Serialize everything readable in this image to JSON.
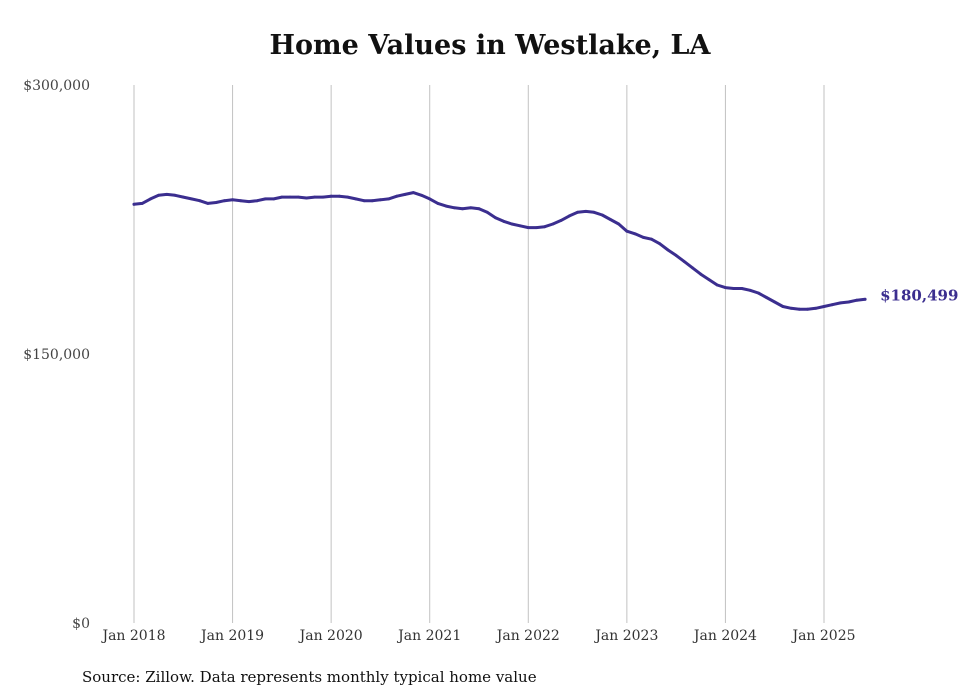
{
  "chart_data": {
    "type": "line",
    "title": "Home Values in Westlake, LA",
    "source": "Source: Zillow. Data represents monthly typical home value",
    "ylim": [
      0,
      300000
    ],
    "yticks": [
      {
        "value": 0,
        "label": "$0"
      },
      {
        "value": 150000,
        "label": "$150,000"
      },
      {
        "value": 300000,
        "label": "$300,000"
      }
    ],
    "xticks": [
      {
        "value": 2018.0,
        "label": "Jan 2018"
      },
      {
        "value": 2019.0,
        "label": "Jan 2019"
      },
      {
        "value": 2020.0,
        "label": "Jan 2020"
      },
      {
        "value": 2021.0,
        "label": "Jan 2021"
      },
      {
        "value": 2022.0,
        "label": "Jan 2022"
      },
      {
        "value": 2023.0,
        "label": "Jan 2023"
      },
      {
        "value": 2024.0,
        "label": "Jan 2024"
      },
      {
        "value": 2025.0,
        "label": "Jan 2025"
      }
    ],
    "xlim": [
      2018.0,
      2025.5
    ],
    "grid": "vertical",
    "line_color": "#3b2e8f",
    "end_label": "$180,499",
    "series": [
      {
        "values": [
          [
            2018.0,
            233500
          ],
          [
            2018.083,
            234000
          ],
          [
            2018.167,
            236500
          ],
          [
            2018.25,
            238500
          ],
          [
            2018.333,
            239000
          ],
          [
            2018.417,
            238500
          ],
          [
            2018.5,
            237500
          ],
          [
            2018.583,
            236500
          ],
          [
            2018.667,
            235500
          ],
          [
            2018.75,
            234000
          ],
          [
            2018.833,
            234500
          ],
          [
            2018.917,
            235500
          ],
          [
            2019.0,
            236000
          ],
          [
            2019.083,
            235500
          ],
          [
            2019.167,
            235000
          ],
          [
            2019.25,
            235500
          ],
          [
            2019.333,
            236500
          ],
          [
            2019.417,
            236500
          ],
          [
            2019.5,
            237500
          ],
          [
            2019.583,
            237500
          ],
          [
            2019.667,
            237500
          ],
          [
            2019.75,
            237000
          ],
          [
            2019.833,
            237500
          ],
          [
            2019.917,
            237500
          ],
          [
            2020.0,
            238000
          ],
          [
            2020.083,
            238000
          ],
          [
            2020.167,
            237500
          ],
          [
            2020.25,
            236500
          ],
          [
            2020.333,
            235500
          ],
          [
            2020.417,
            235500
          ],
          [
            2020.5,
            236000
          ],
          [
            2020.583,
            236500
          ],
          [
            2020.667,
            238000
          ],
          [
            2020.75,
            239000
          ],
          [
            2020.833,
            240000
          ],
          [
            2020.917,
            238500
          ],
          [
            2021.0,
            236500
          ],
          [
            2021.083,
            234000
          ],
          [
            2021.167,
            232500
          ],
          [
            2021.25,
            231500
          ],
          [
            2021.333,
            231000
          ],
          [
            2021.417,
            231500
          ],
          [
            2021.5,
            231000
          ],
          [
            2021.583,
            229000
          ],
          [
            2021.667,
            226000
          ],
          [
            2021.75,
            224000
          ],
          [
            2021.833,
            222500
          ],
          [
            2021.917,
            221500
          ],
          [
            2022.0,
            220500
          ],
          [
            2022.083,
            220500
          ],
          [
            2022.167,
            221000
          ],
          [
            2022.25,
            222500
          ],
          [
            2022.333,
            224500
          ],
          [
            2022.417,
            227000
          ],
          [
            2022.5,
            229000
          ],
          [
            2022.583,
            229500
          ],
          [
            2022.667,
            229000
          ],
          [
            2022.75,
            227500
          ],
          [
            2022.833,
            225000
          ],
          [
            2022.917,
            222500
          ],
          [
            2023.0,
            218500
          ],
          [
            2023.083,
            217000
          ],
          [
            2023.167,
            215000
          ],
          [
            2023.25,
            214000
          ],
          [
            2023.333,
            211500
          ],
          [
            2023.417,
            208000
          ],
          [
            2023.5,
            205000
          ],
          [
            2023.583,
            201500
          ],
          [
            2023.667,
            198000
          ],
          [
            2023.75,
            194500
          ],
          [
            2023.833,
            191500
          ],
          [
            2023.917,
            188500
          ],
          [
            2024.0,
            187000
          ],
          [
            2024.083,
            186500
          ],
          [
            2024.167,
            186500
          ],
          [
            2024.25,
            185500
          ],
          [
            2024.333,
            184000
          ],
          [
            2024.417,
            181500
          ],
          [
            2024.5,
            179000
          ],
          [
            2024.583,
            176500
          ],
          [
            2024.667,
            175500
          ],
          [
            2024.75,
            175000
          ],
          [
            2024.833,
            175000
          ],
          [
            2024.917,
            175500
          ],
          [
            2025.0,
            176500
          ],
          [
            2025.083,
            177500
          ],
          [
            2025.167,
            178500
          ],
          [
            2025.25,
            179000
          ],
          [
            2025.333,
            180000
          ],
          [
            2025.417,
            180499
          ]
        ]
      }
    ]
  }
}
